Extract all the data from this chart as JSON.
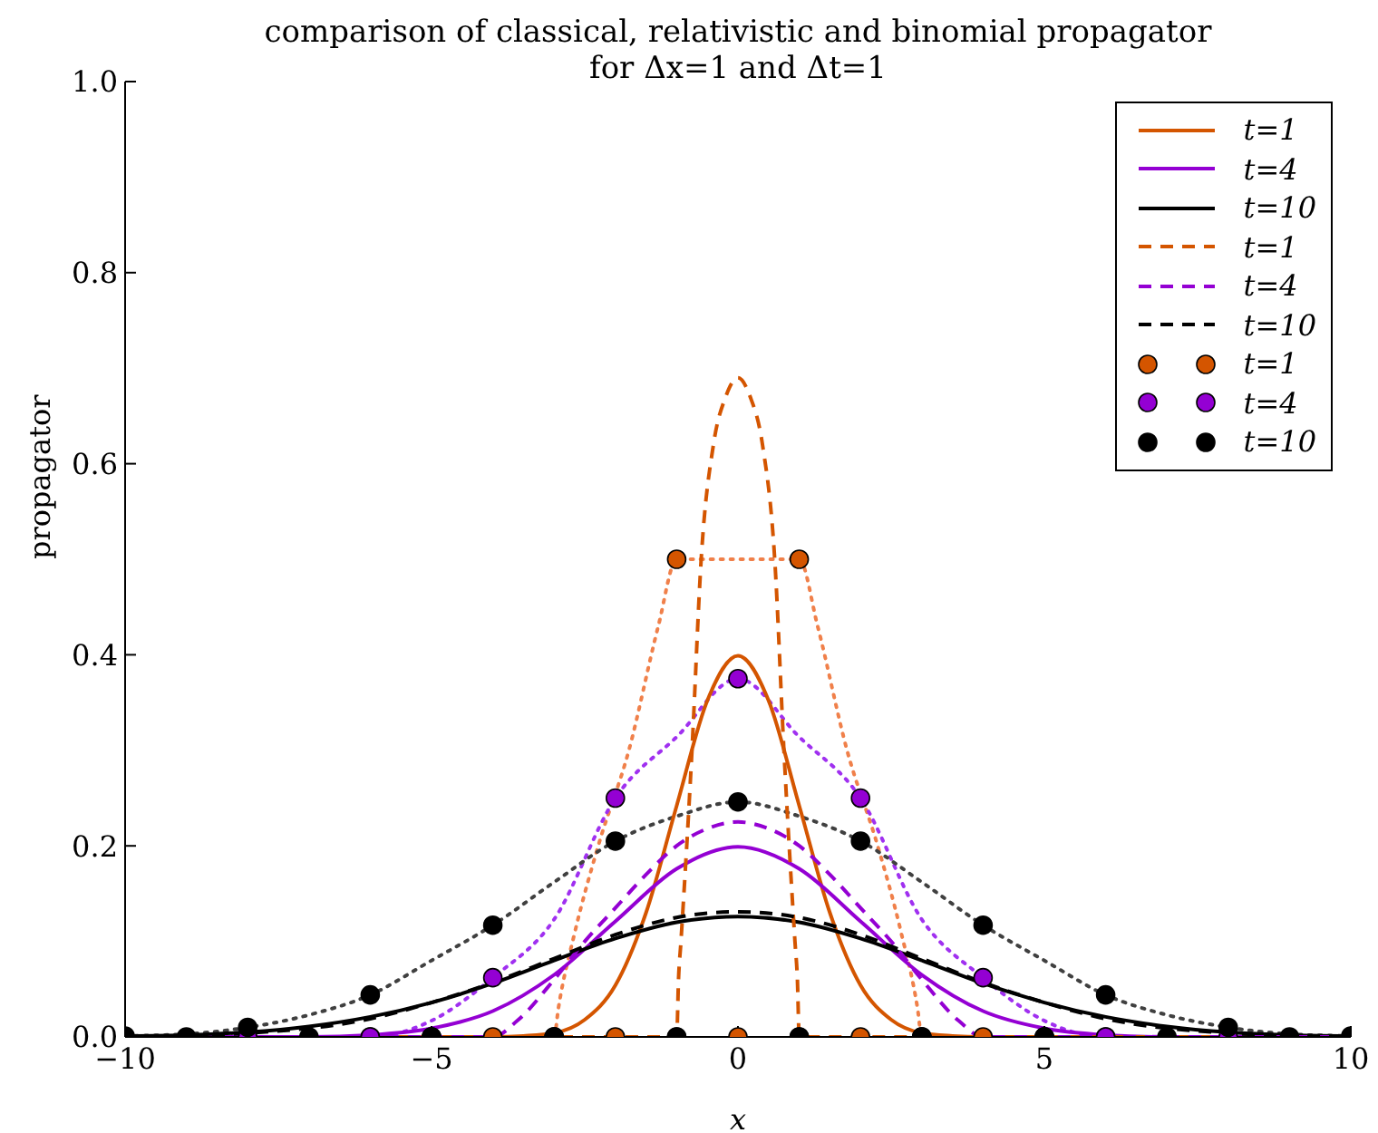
{
  "chart_data": {
    "type": "line",
    "title": "comparison of classical, relativistic and binomial propagator\nfor Δx=1 and Δt=1",
    "xlabel": "x",
    "ylabel": "propagator",
    "xlim": [
      -10,
      10
    ],
    "ylim": [
      0,
      1
    ],
    "xticks": [
      {
        "value": -10,
        "label": "−10"
      },
      {
        "value": -5,
        "label": "−5"
      },
      0,
      5,
      10
    ],
    "yticks": [
      {
        "value": 0,
        "label": "0.0"
      },
      {
        "value": 0.2,
        "label": "0.2"
      },
      {
        "value": 0.4,
        "label": "0.4"
      },
      {
        "value": 0.6,
        "label": "0.6"
      },
      {
        "value": 0.8,
        "label": "0.8"
      },
      {
        "value": 1,
        "label": "1.0"
      }
    ],
    "grid": false,
    "legend": "top right",
    "marker": "none",
    "series": [
      {
        "type": "line",
        "color": "#f0804a",
        "line_style": "dotted",
        "x": [
          -10,
          -3,
          -2.93,
          -2.66,
          -2.28,
          -1.78,
          -1.3,
          -1,
          1,
          1.3,
          1.78,
          2.28,
          2.66,
          2.93,
          3,
          10
        ],
        "values": [
          0,
          0,
          0.03,
          0.11,
          0.2,
          0.3,
          0.43,
          0.5,
          0.5,
          0.43,
          0.3,
          0.2,
          0.11,
          0.03,
          0,
          0
        ]
      },
      {
        "type": "line",
        "color": "#a030f0",
        "line_style": "dotted",
        "x": [
          -10,
          -6,
          -5,
          -4,
          -3,
          -2,
          -1,
          0,
          1,
          2,
          3,
          4,
          5,
          6,
          10
        ],
        "values": [
          0,
          0,
          0.017,
          0.062,
          0.123,
          0.25,
          0.314,
          0.375,
          0.314,
          0.25,
          0.123,
          0.062,
          0.017,
          0,
          0
        ]
      },
      {
        "type": "line",
        "color": "#404040",
        "line_style": "dotted",
        "x": [
          -10,
          -9,
          -8,
          -7,
          -6,
          -5,
          -4,
          -3,
          -2,
          -1,
          0,
          1,
          2,
          3,
          4,
          5,
          6,
          7,
          8,
          9,
          10
        ],
        "values": [
          0.001,
          0.003,
          0.01,
          0.023,
          0.044,
          0.08,
          0.117,
          0.162,
          0.205,
          0.231,
          0.246,
          0.231,
          0.205,
          0.162,
          0.117,
          0.08,
          0.044,
          0.023,
          0.01,
          0.003,
          0.001
        ]
      },
      {
        "type": "line",
        "name": "t=1",
        "color": "#d45500",
        "line_style": "solid",
        "x": [
          -10,
          -4,
          -3.5,
          -3,
          -2.5,
          -2,
          -1.5,
          -1,
          -0.5,
          0,
          0.5,
          1,
          1.5,
          2,
          2.5,
          3,
          3.5,
          4,
          10
        ],
        "values": [
          0,
          0,
          0.001,
          0.004,
          0.018,
          0.054,
          0.13,
          0.242,
          0.352,
          0.399,
          0.352,
          0.242,
          0.13,
          0.054,
          0.018,
          0.004,
          0.001,
          0,
          0
        ]
      },
      {
        "type": "line",
        "name": "t=4",
        "color": "#9400d3",
        "line_style": "solid",
        "x": [
          -10,
          -8,
          -7,
          -6,
          -5,
          -4,
          -3,
          -2,
          -1,
          0,
          1,
          2,
          3,
          4,
          5,
          6,
          7,
          8,
          10
        ],
        "values": [
          0,
          0,
          0,
          0.002,
          0.009,
          0.027,
          0.065,
          0.121,
          0.176,
          0.199,
          0.176,
          0.121,
          0.065,
          0.027,
          0.009,
          0.002,
          0,
          0,
          0
        ]
      },
      {
        "type": "line",
        "name": "t=10",
        "color": "#000000",
        "line_style": "solid",
        "x": [
          -10,
          -9,
          -8,
          -7,
          -6,
          -5,
          -4,
          -3,
          -2,
          -1,
          0,
          1,
          2,
          3,
          4,
          5,
          6,
          7,
          8,
          9,
          10
        ],
        "values": [
          0.001,
          0.002,
          0.005,
          0.011,
          0.021,
          0.036,
          0.056,
          0.08,
          0.103,
          0.12,
          0.126,
          0.12,
          0.103,
          0.08,
          0.056,
          0.036,
          0.021,
          0.011,
          0.005,
          0.002,
          0.001
        ]
      },
      {
        "type": "line",
        "name": "t=1",
        "color": "#d45500",
        "line_style": "dashed",
        "x": [
          -10,
          -1,
          -0.97,
          -0.93,
          -0.75,
          -0.6,
          -0.4,
          -0.2,
          0,
          0.2,
          0.4,
          0.6,
          0.75,
          0.93,
          0.97,
          1,
          10
        ],
        "values": [
          0,
          0,
          0.06,
          0.1,
          0.3,
          0.5,
          0.62,
          0.67,
          0.69,
          0.67,
          0.62,
          0.5,
          0.3,
          0.1,
          0.06,
          0,
          0
        ]
      },
      {
        "type": "line",
        "name": "t=4",
        "color": "#9400d3",
        "line_style": "dashed",
        "x": [
          -10,
          -4,
          -3.6,
          -3,
          -2.5,
          -2,
          -1.5,
          -1,
          -0.5,
          0,
          0.5,
          1,
          1.5,
          2,
          2.5,
          3,
          3.6,
          4,
          10
        ],
        "values": [
          0,
          0,
          0.017,
          0.06,
          0.1,
          0.135,
          0.17,
          0.2,
          0.218,
          0.225,
          0.218,
          0.2,
          0.17,
          0.135,
          0.1,
          0.06,
          0.017,
          0,
          0
        ]
      },
      {
        "type": "line",
        "name": "t=10",
        "color": "#000000",
        "line_style": "dashed",
        "x": [
          -10,
          -8,
          -6,
          -5,
          -4,
          -3,
          -2,
          -1,
          0,
          1,
          2,
          3,
          4,
          5,
          6,
          8,
          10
        ],
        "values": [
          0,
          0.004,
          0.019,
          0.036,
          0.057,
          0.082,
          0.107,
          0.125,
          0.131,
          0.125,
          0.107,
          0.082,
          0.057,
          0.036,
          0.019,
          0.004,
          0
        ]
      },
      {
        "type": "scatter",
        "name": "t=1",
        "color": "#d45500",
        "marker": "circle",
        "x": [
          -6,
          -5,
          -4,
          -3,
          -2,
          -1,
          0,
          1,
          2,
          3,
          4,
          5,
          6
        ],
        "values": [
          0,
          0,
          0,
          0,
          0,
          0.5,
          0,
          0.5,
          0,
          0,
          0,
          0,
          0
        ]
      },
      {
        "type": "scatter",
        "name": "t=4",
        "color": "#9400d3",
        "marker": "circle",
        "x": [
          -8,
          -6,
          -5,
          -4,
          -3,
          -2,
          -1,
          0,
          1,
          2,
          3,
          4,
          5,
          6,
          8
        ],
        "values": [
          0,
          0,
          0,
          0.062,
          0,
          0.25,
          0,
          0.375,
          0,
          0.25,
          0,
          0.062,
          0,
          0,
          0
        ]
      },
      {
        "type": "scatter",
        "name": "t=10",
        "color": "#000000",
        "marker": "circle",
        "x": [
          -10,
          -9,
          -8,
          -7,
          -6,
          -5,
          -4,
          -3,
          -2,
          -1,
          0,
          1,
          2,
          3,
          4,
          5,
          6,
          7,
          8,
          9,
          10
        ],
        "values": [
          0.001,
          0,
          0.01,
          0,
          0.044,
          0,
          0.117,
          0,
          0.205,
          0,
          0.246,
          0,
          0.205,
          0,
          0.117,
          0,
          0.044,
          0,
          0.01,
          0,
          0.001
        ]
      }
    ]
  }
}
